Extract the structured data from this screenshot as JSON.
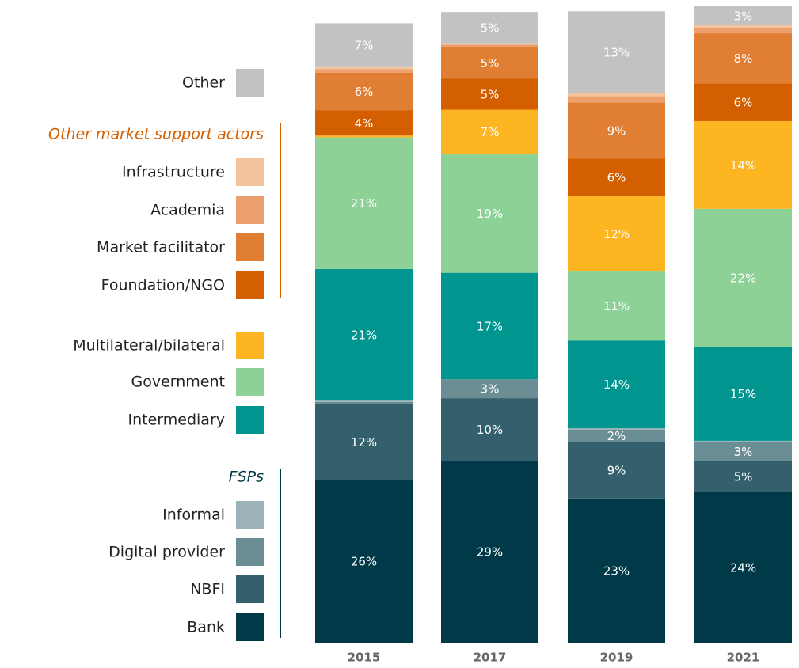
{
  "chart_data": {
    "type": "stacked_bar",
    "categories": [
      "2015",
      "2017",
      "2019",
      "2021"
    ],
    "legend_groups": [
      {
        "title": "Other market support actors",
        "color": "#d45f00"
      },
      {
        "title": "FSPs",
        "color": "#003a48"
      }
    ],
    "series": [
      {
        "name": "Bank",
        "color": "#003a48",
        "values": [
          26,
          29,
          23,
          24
        ],
        "value_labels": [
          "26%",
          "29%",
          "23%",
          "24%"
        ]
      },
      {
        "name": "NBFI",
        "color": "#33606c",
        "values": [
          12,
          10,
          9,
          5
        ],
        "value_labels": [
          "12%",
          "10%",
          "9%",
          "5%"
        ]
      },
      {
        "name": "Digital provider",
        "color": "#6b8d94",
        "values": [
          0.4,
          3,
          2,
          3
        ],
        "value_labels": [
          null,
          "3%",
          "2%",
          "3%"
        ]
      },
      {
        "name": "Informal",
        "color": "#9bb3b8",
        "values": [
          0.2,
          0,
          0.2,
          0.2
        ],
        "value_labels": [
          null,
          null,
          null,
          null
        ]
      },
      {
        "name": "Intermediary",
        "color": "#00968f",
        "values": [
          21,
          17,
          14,
          15
        ],
        "value_labels": [
          "21%",
          "17%",
          "14%",
          "15%"
        ]
      },
      {
        "name": "Government",
        "color": "#8dd197",
        "values": [
          21,
          19,
          11,
          22
        ],
        "value_labels": [
          "21%",
          "19%",
          "11%",
          "22%"
        ]
      },
      {
        "name": "Multilateral/bilateral",
        "color": "#fdb622",
        "values": [
          0.3,
          7,
          12,
          14
        ],
        "value_labels": [
          null,
          "7%",
          "12%",
          "14%"
        ]
      },
      {
        "name": "Foundation/NGO",
        "color": "#d45f00",
        "values": [
          4,
          5,
          6,
          6
        ],
        "value_labels": [
          "4%",
          "5%",
          "6%",
          "6%"
        ]
      },
      {
        "name": "Market facilitator",
        "color": "#e07f34",
        "values": [
          6,
          5,
          9,
          8
        ],
        "value_labels": [
          "6%",
          "5%",
          "9%",
          "8%"
        ]
      },
      {
        "name": "Academia",
        "color": "#eba06d",
        "values": [
          0.6,
          0.4,
          1,
          0.8
        ],
        "value_labels": [
          null,
          null,
          null,
          null
        ]
      },
      {
        "name": "Infrastructure",
        "color": "#f3c39d",
        "values": [
          0.3,
          0.2,
          0.5,
          0.5
        ],
        "value_labels": [
          null,
          null,
          null,
          null
        ]
      },
      {
        "name": "Other",
        "color": "#c2c2c2",
        "values": [
          7,
          5,
          13,
          3
        ],
        "value_labels": [
          "7%",
          "5%",
          "13%",
          "3%"
        ]
      }
    ]
  }
}
